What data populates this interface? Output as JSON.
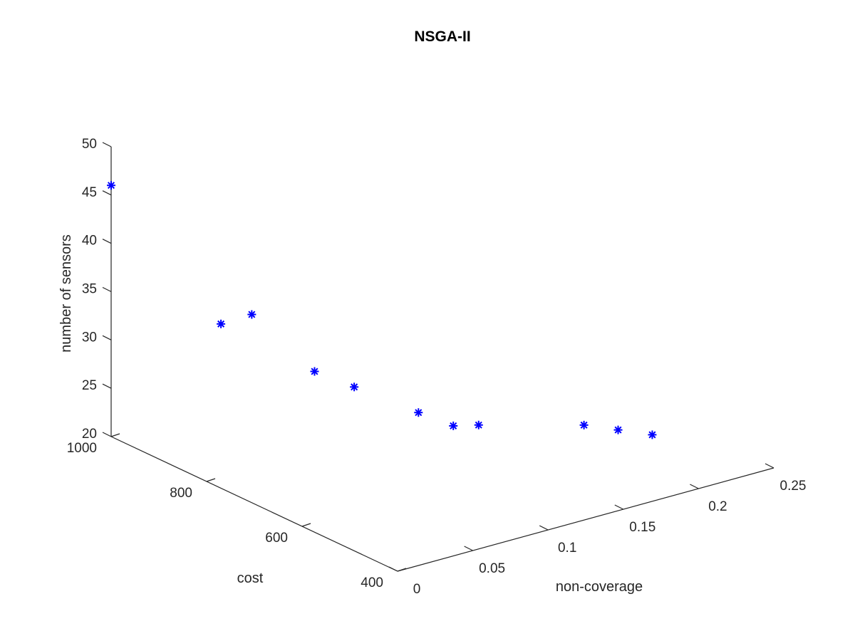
{
  "chart_data": {
    "type": "scatter",
    "title": "NSGA-II",
    "xlabel": "non-coverage",
    "ylabel": "cost",
    "zlabel": "number of sensors",
    "xlim": [
      0,
      0.25
    ],
    "ylim": [
      400,
      1000
    ],
    "zlim": [
      20,
      50
    ],
    "xticks": [
      0,
      0.05,
      0.1,
      0.15,
      0.2,
      0.25
    ],
    "xtick_labels": [
      "0",
      "0.05",
      "0.1",
      "0.15",
      "0.2",
      "0.25"
    ],
    "yticks": [
      400,
      600,
      800,
      1000
    ],
    "ytick_labels": [
      "400",
      "600",
      "800",
      "1000"
    ],
    "zticks": [
      20,
      25,
      30,
      35,
      40,
      45,
      50
    ],
    "ztick_labels": [
      "20",
      "25",
      "30",
      "35",
      "40",
      "45",
      "50"
    ],
    "grid": false,
    "marker": "asterisk",
    "marker_color": "#0000ff",
    "points": [
      {
        "x": 0.0,
        "y": 1000,
        "z": 46
      },
      {
        "x": 0.0,
        "y": 770,
        "z": 37
      },
      {
        "x": 0.03,
        "y": 800,
        "z": 36
      },
      {
        "x": 0.04,
        "y": 700,
        "z": 32
      },
      {
        "x": 0.06,
        "y": 680,
        "z": 30
      },
      {
        "x": 0.09,
        "y": 640,
        "z": 27
      },
      {
        "x": 0.11,
        "y": 630,
        "z": 25
      },
      {
        "x": 0.13,
        "y": 640,
        "z": 24
      },
      {
        "x": 0.2,
        "y": 640,
        "z": 21
      },
      {
        "x": 0.21,
        "y": 600,
        "z": 21
      },
      {
        "x": 0.22,
        "y": 560,
        "z": 21
      }
    ]
  }
}
